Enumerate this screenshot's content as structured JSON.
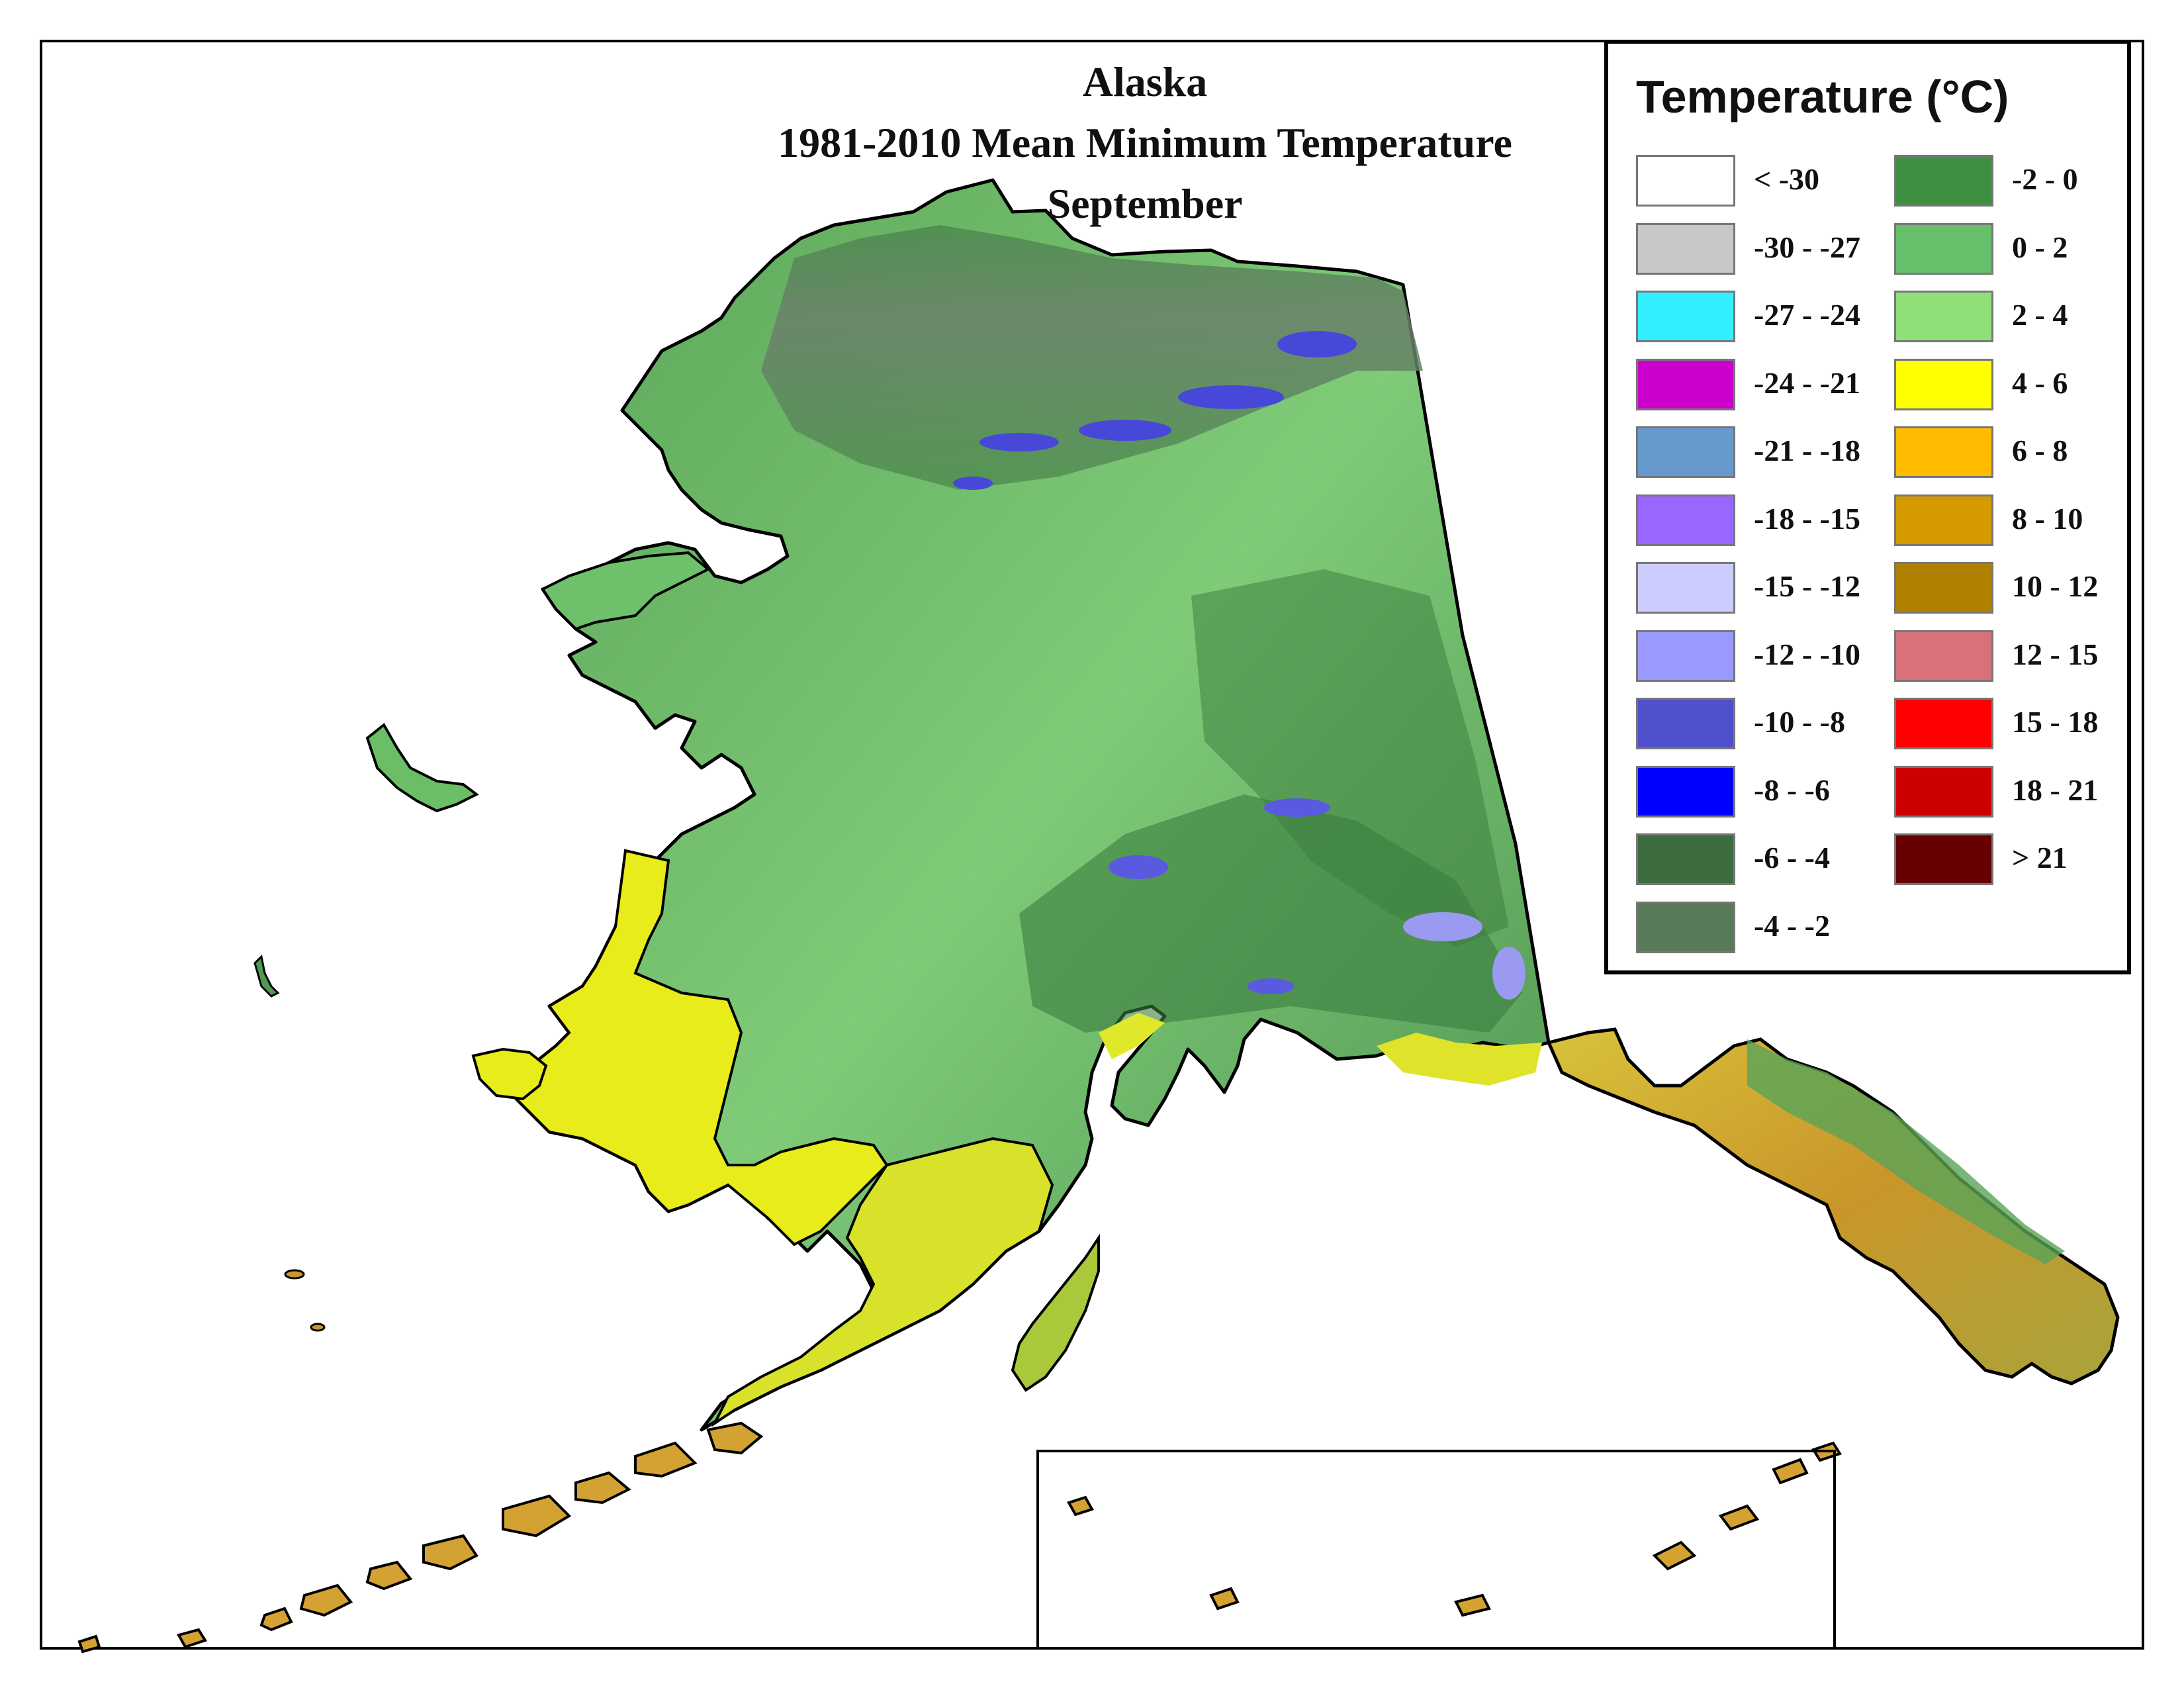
{
  "title": {
    "line1": "Alaska",
    "line2": "1981-2010 Mean Minimum Temperature",
    "line3": "September"
  },
  "legend": {
    "title": "Temperature (°C)",
    "items": [
      {
        "label": "< -30",
        "color": "#ffffff"
      },
      {
        "label": "-30 - -27",
        "color": "#c8c8c8"
      },
      {
        "label": "-27 - -24",
        "color": "#33eeff"
      },
      {
        "label": "-24 - -21",
        "color": "#cc00cc"
      },
      {
        "label": "-21 - -18",
        "color": "#6699cc"
      },
      {
        "label": "-18 - -15",
        "color": "#9966ff"
      },
      {
        "label": "-15 - -12",
        "color": "#ccccff"
      },
      {
        "label": "-12 - -10",
        "color": "#9999ff"
      },
      {
        "label": "-10 - -8",
        "color": "#5050cc"
      },
      {
        "label": "-8 - -6",
        "color": "#0000ff"
      },
      {
        "label": "-6 - -4",
        "color": "#3d6b40"
      },
      {
        "label": "-4 - -2",
        "color": "#587a58"
      },
      {
        "label": "-2 - 0",
        "color": "#3f8f40"
      },
      {
        "label": "0 - 2",
        "color": "#66bf6b"
      },
      {
        "label": "2 - 4",
        "color": "#90e07a"
      },
      {
        "label": "4 - 6",
        "color": "#ffff00"
      },
      {
        "label": "6 - 8",
        "color": "#ffbb00"
      },
      {
        "label": "8 - 10",
        "color": "#d49a00"
      },
      {
        "label": "10 - 12",
        "color": "#b08000"
      },
      {
        "label": "12 - 15",
        "color": "#d9707a"
      },
      {
        "label": "15 - 18",
        "color": "#ff0000"
      },
      {
        "label": "18 - 21",
        "color": "#cc0000"
      },
      {
        "label": "> 21",
        "color": "#660000"
      }
    ]
  },
  "map_colors": {
    "north_slope": "#5d7d5f",
    "interior": "#4f9a52",
    "lowland": "#7fcf7a",
    "west_coast": "#e8ec1a",
    "southeast": "#c79a2a",
    "mountain_ice": "#4848d8",
    "coastline": "#000000"
  }
}
